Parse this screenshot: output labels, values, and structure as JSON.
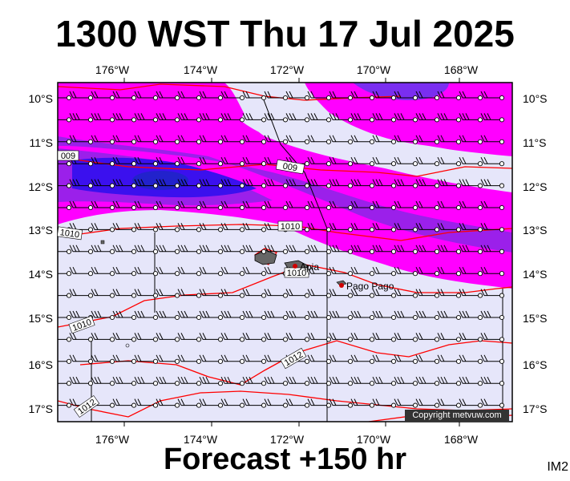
{
  "header": {
    "title": "1300 WST Thu 17 Jul 2025"
  },
  "footer": {
    "forecast": "Forecast +150 hr",
    "code": "IM2",
    "copyright": "Copyright metvuw.com"
  },
  "map": {
    "lon_labels": [
      "176°W",
      "174°W",
      "172°W",
      "170°W",
      "168°W"
    ],
    "lat_labels": [
      "10°S",
      "11°S",
      "12°S",
      "13°S",
      "14°S",
      "15°S",
      "16°S",
      "17°S"
    ],
    "isobars": [
      "009",
      "009",
      "1010",
      "1010",
      "1010",
      "1010",
      "1012",
      "1012"
    ],
    "places": [
      {
        "name": "Apia",
        "lon": -171.75,
        "lat": -13.83
      },
      {
        "name": "Pago Pago",
        "lon": -170.7,
        "lat": -14.28
      }
    ]
  },
  "colors": {
    "light": "#e6e6fa",
    "magenta": "#ff00ff",
    "violet": "#9b20ea",
    "blue": "#3b10ee",
    "isobar": "#ff0000"
  }
}
